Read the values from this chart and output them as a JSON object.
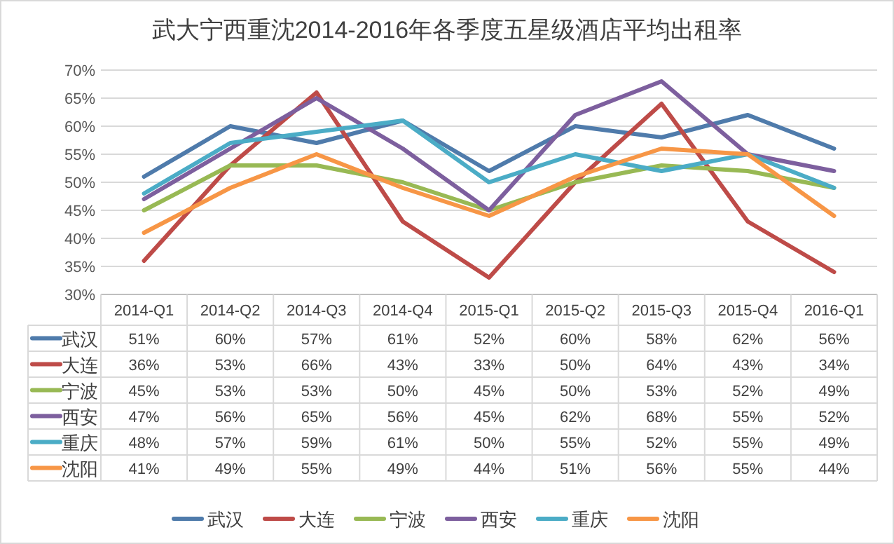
{
  "chart_data": {
    "type": "line",
    "title": "武大宁西重沈2014-2016年各季度五星级酒店平均出租率",
    "categories": [
      "2014-Q1",
      "2014-Q2",
      "2014-Q3",
      "2014-Q4",
      "2015-Q1",
      "2015-Q2",
      "2015-Q3",
      "2015-Q4",
      "2016-Q1"
    ],
    "ylim": [
      30,
      70
    ],
    "yticks": [
      {
        "value": 30,
        "label": "30%"
      },
      {
        "value": 35,
        "label": "35%"
      },
      {
        "value": 40,
        "label": "40%"
      },
      {
        "value": 45,
        "label": "45%"
      },
      {
        "value": 50,
        "label": "50%"
      },
      {
        "value": 55,
        "label": "55%"
      },
      {
        "value": 60,
        "label": "60%"
      },
      {
        "value": 65,
        "label": "65%"
      },
      {
        "value": 70,
        "label": "70%"
      }
    ],
    "grid": "y",
    "legend": "bottom",
    "marker": "none",
    "line_style": "solid",
    "series": [
      {
        "name": "武汉",
        "color": "#4f7bab",
        "values": [
          51,
          60,
          57,
          61,
          52,
          60,
          58,
          62,
          56
        ],
        "value_labels": [
          "51%",
          "60%",
          "57%",
          "61%",
          "52%",
          "60%",
          "58%",
          "62%",
          "56%"
        ]
      },
      {
        "name": "大连",
        "color": "#be4b48",
        "values": [
          36,
          53,
          66,
          43,
          33,
          50,
          64,
          43,
          34
        ],
        "value_labels": [
          "36%",
          "53%",
          "66%",
          "43%",
          "33%",
          "50%",
          "64%",
          "43%",
          "34%"
        ]
      },
      {
        "name": "宁波",
        "color": "#98b954",
        "values": [
          45,
          53,
          53,
          50,
          45,
          50,
          53,
          52,
          49
        ],
        "value_labels": [
          "45%",
          "53%",
          "53%",
          "50%",
          "45%",
          "50%",
          "53%",
          "52%",
          "49%"
        ]
      },
      {
        "name": "西安",
        "color": "#7d5f9e",
        "values": [
          47,
          56,
          65,
          56,
          45,
          62,
          68,
          55,
          52
        ],
        "value_labels": [
          "47%",
          "56%",
          "65%",
          "56%",
          "45%",
          "62%",
          "68%",
          "55%",
          "52%"
        ]
      },
      {
        "name": "重庆",
        "color": "#4bacc6",
        "values": [
          48,
          57,
          59,
          61,
          50,
          55,
          52,
          55,
          49
        ],
        "value_labels": [
          "48%",
          "57%",
          "59%",
          "61%",
          "50%",
          "55%",
          "52%",
          "55%",
          "49%"
        ]
      },
      {
        "name": "沈阳",
        "color": "#f79646",
        "values": [
          41,
          49,
          55,
          49,
          44,
          51,
          56,
          55,
          44
        ],
        "value_labels": [
          "41%",
          "49%",
          "55%",
          "49%",
          "44%",
          "51%",
          "56%",
          "55%",
          "44%"
        ]
      }
    ]
  }
}
